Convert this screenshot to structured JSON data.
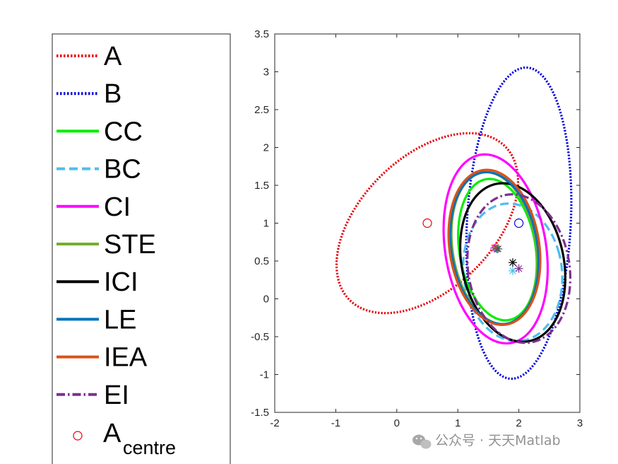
{
  "chart_data": {
    "type": "line",
    "title": "",
    "xlabel": "",
    "ylabel": "",
    "xlim": [
      -2,
      3
    ],
    "ylim": [
      -1.5,
      3.5
    ],
    "xticks": [
      "-2",
      "-1",
      "0",
      "1",
      "2",
      "3"
    ],
    "yticks": [
      "-1.5",
      "-1",
      "-0.5",
      "0",
      "0.5",
      "1",
      "1.5",
      "2",
      "2.5",
      "3",
      "3.5"
    ],
    "grid": false,
    "legend_position": "outside-left",
    "series": [
      {
        "name": "A",
        "color": "#e8000b",
        "style": "dotted",
        "center": [
          0.5,
          1.0
        ],
        "rx": 0.95,
        "ry": 1.65,
        "angle_deg": -58
      },
      {
        "name": "B",
        "color": "#0000e0",
        "style": "dotted",
        "center": [
          2.0,
          1.0
        ],
        "rx": 0.85,
        "ry": 2.06,
        "angle_deg": -4
      },
      {
        "name": "CC",
        "color": "#00ee00",
        "style": "solid",
        "center": [
          1.65,
          0.65
        ],
        "rx": 0.62,
        "ry": 0.95,
        "angle_deg": 14
      },
      {
        "name": "BC",
        "color": "#4dbeee",
        "style": "dashed",
        "center": [
          1.9,
          0.35
        ],
        "rx": 0.8,
        "ry": 0.92,
        "angle_deg": 18
      },
      {
        "name": "CI",
        "color": "#ff00ff",
        "style": "solid",
        "center": [
          1.62,
          0.66
        ],
        "rx": 0.82,
        "ry": 1.27,
        "angle_deg": 14
      },
      {
        "name": "STE",
        "color": "#77ac30",
        "style": "solid",
        "center": [
          1.6,
          0.67
        ],
        "rx": 0.68,
        "ry": 1.02,
        "angle_deg": 14
      },
      {
        "name": "ICI",
        "color": "#000000",
        "style": "solid",
        "center": [
          1.9,
          0.48
        ],
        "rx": 0.82,
        "ry": 1.08,
        "angle_deg": 22
      },
      {
        "name": "LE",
        "color": "#0072bd",
        "style": "solid",
        "center": [
          1.6,
          0.67
        ],
        "rx": 0.7,
        "ry": 1.02,
        "angle_deg": 14
      },
      {
        "name": "IEA",
        "color": "#d95319",
        "style": "solid",
        "center": [
          1.6,
          0.68
        ],
        "rx": 0.73,
        "ry": 1.04,
        "angle_deg": 14
      },
      {
        "name": "EI",
        "color": "#7e2f8e",
        "style": "dashdot",
        "center": [
          2.0,
          0.4
        ],
        "rx": 0.82,
        "ry": 1.0,
        "angle_deg": 20
      }
    ],
    "center_markers": [
      {
        "name": "A_centre",
        "color": "#e8000b",
        "marker": "circle",
        "x": 0.5,
        "y": 1.0
      },
      {
        "color": "#0000e0",
        "marker": "circle",
        "x": 2.0,
        "y": 1.0
      },
      {
        "color": "#000000",
        "marker": "star",
        "x": 1.9,
        "y": 0.48
      },
      {
        "color": "#4dbeee",
        "marker": "star",
        "x": 1.9,
        "y": 0.37
      },
      {
        "color": "#7e2f8e",
        "marker": "star",
        "x": 2.0,
        "y": 0.4
      },
      {
        "color": "#ff00ff",
        "marker": "star",
        "x": 1.6,
        "y": 0.67
      },
      {
        "color": "#77ac30",
        "marker": "star",
        "x": 1.62,
        "y": 0.67
      },
      {
        "color": "#0072bd",
        "marker": "star",
        "x": 1.64,
        "y": 0.66
      },
      {
        "color": "#d95319",
        "marker": "star",
        "x": 1.62,
        "y": 0.68
      },
      {
        "color": "#555555",
        "marker": "star",
        "x": 1.66,
        "y": 0.66
      }
    ],
    "legend": {
      "entries": [
        "A",
        "B",
        "CC",
        "BC",
        "CI",
        "STE",
        "ICI",
        "LE",
        "IEA",
        "EI"
      ],
      "marker_entry": {
        "main": "A",
        "sub": "centre"
      }
    }
  },
  "watermark": {
    "text": "公众号 · 天天Matlab",
    "icon": "wechat-icon"
  }
}
